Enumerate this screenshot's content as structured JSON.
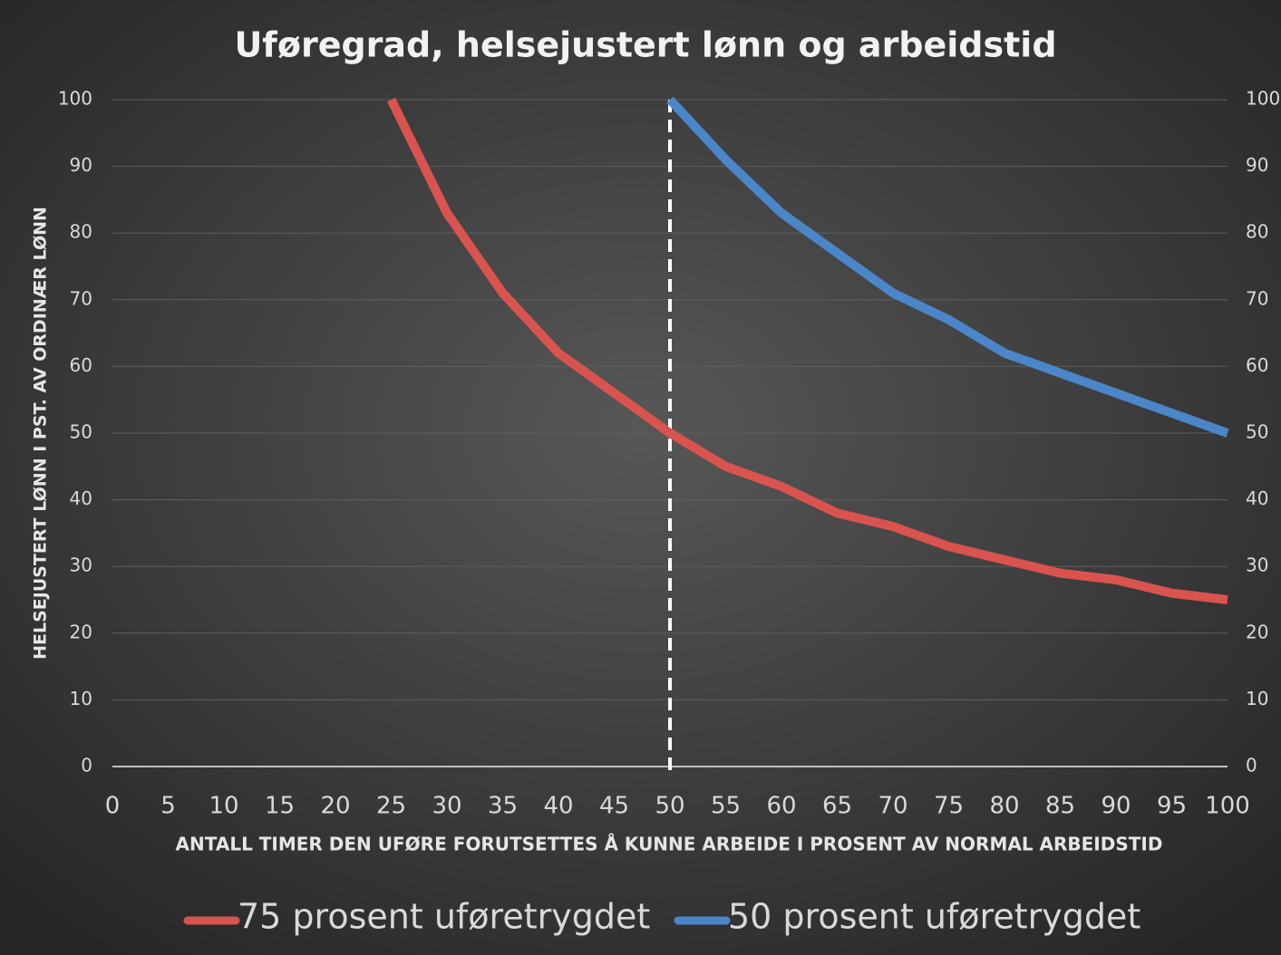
{
  "chart_data": {
    "type": "line",
    "title": "Uføregrad, helsejustert lønn og arbeidstid",
    "x_label": "ANTALL TIMER DEN UFØRE FORUTSETTES Å KUNNE ARBEIDE I PROSENT AV NORMAL ARBEIDSTID",
    "y_label": "HELSEJUSTERT LØNN I PST. AV ORDINÆR LØNN",
    "x": [
      0,
      5,
      10,
      15,
      20,
      25,
      30,
      35,
      40,
      45,
      50,
      55,
      60,
      65,
      70,
      75,
      80,
      85,
      90,
      95,
      100
    ],
    "series": [
      {
        "name": "75 prosent uføretrygdet",
        "color": "#d9534f",
        "values": [
          null,
          null,
          null,
          null,
          null,
          100,
          83,
          71,
          62,
          56,
          50,
          45,
          42,
          38,
          36,
          33,
          31,
          29,
          28,
          26,
          25
        ]
      },
      {
        "name": "50 prosent uføretrygdet",
        "color": "#4a86c8",
        "values": [
          null,
          null,
          null,
          null,
          null,
          null,
          null,
          null,
          null,
          null,
          100,
          91,
          83,
          77,
          71,
          67,
          62,
          59,
          56,
          53,
          50
        ]
      }
    ],
    "vline": 50,
    "xlim": [
      0,
      100
    ],
    "xticks": [
      0,
      5,
      10,
      15,
      20,
      25,
      30,
      35,
      40,
      45,
      50,
      55,
      60,
      65,
      70,
      75,
      80,
      85,
      90,
      95,
      100
    ],
    "ylim": [
      0,
      100
    ],
    "yticks": [
      0,
      10,
      20,
      30,
      40,
      50,
      60,
      70,
      80,
      90,
      100
    ],
    "y2lim": [
      0,
      100
    ],
    "y2ticks": [
      0,
      10,
      20,
      30,
      40,
      50,
      60,
      70,
      80,
      90,
      100
    ],
    "grid": true,
    "legend": "bottom"
  }
}
